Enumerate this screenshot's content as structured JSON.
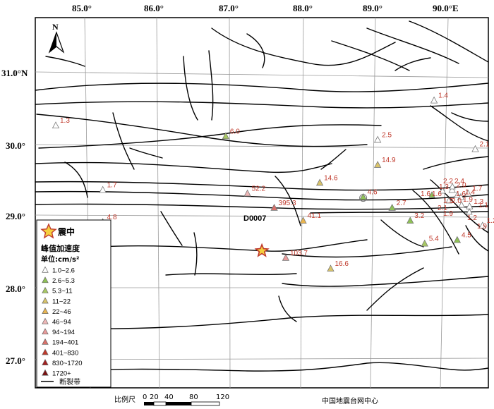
{
  "map": {
    "lon_ticks": [
      "85.0°",
      "86.0°",
      "87.0°",
      "88.0°",
      "89.0°",
      "90.0°E"
    ],
    "lat_ticks": [
      "31.0°N",
      "30.0°",
      "29.0°",
      "28.0°",
      "27.0°"
    ],
    "north_label": "N",
    "station_id": "D0007",
    "credit": "中国地震台网中心",
    "scale": {
      "title": "比例尺",
      "ticks": [
        "0",
        "20",
        "40",
        "80",
        "120"
      ]
    }
  },
  "legend": {
    "epicenter_label": "震中",
    "pga_title": "峰值加速度",
    "unit_label": "单位:cm/s²",
    "fault_label": "断裂带",
    "classes": [
      {
        "range": "1.0~2.6",
        "color": "#ffffff"
      },
      {
        "range": "2.6~5.3",
        "color": "#8fc156"
      },
      {
        "range": "5.3~11",
        "color": "#a8c863"
      },
      {
        "range": "11~22",
        "color": "#d9c46a"
      },
      {
        "range": "22~46",
        "color": "#e8b44f"
      },
      {
        "range": "46~94",
        "color": "#efb7b7"
      },
      {
        "range": "94~194",
        "color": "#e99a9a"
      },
      {
        "range": "194~401",
        "color": "#d9706a"
      },
      {
        "range": "401~830",
        "color": "#c0392b"
      },
      {
        "range": "830~1720",
        "color": "#a32020"
      },
      {
        "range": "1720+",
        "color": "#7a1010"
      }
    ]
  },
  "colors": {
    "label": "#c0392b",
    "epicenter_fill": "#f4d03f",
    "epicenter_stroke": "#c0392b"
  },
  "stations": [
    {
      "value": "1.3",
      "lon": 84.6,
      "lat": 30.25,
      "color": "#ffffff"
    },
    {
      "value": "1.7",
      "lon": 85.25,
      "lat": 29.35,
      "color": "#ffffff"
    },
    {
      "value": "4.8",
      "lon": 85.25,
      "lat": 28.9,
      "color": "#8fc156"
    },
    {
      "value": "6.0",
      "lon": 86.95,
      "lat": 30.1,
      "color": "#a8c863"
    },
    {
      "value": "52.2",
      "lon": 87.25,
      "lat": 29.3,
      "color": "#efb7b7"
    },
    {
      "value": "395.3",
      "lon": 87.62,
      "lat": 29.1,
      "color": "#d9706a"
    },
    {
      "value": "41.1",
      "lon": 88.02,
      "lat": 28.92,
      "color": "#e8b44f"
    },
    {
      "value": "103.7",
      "lon": 87.78,
      "lat": 28.4,
      "color": "#e99a9a"
    },
    {
      "value": "14.6",
      "lon": 88.25,
      "lat": 29.45,
      "color": "#d9c46a"
    },
    {
      "value": "16.6",
      "lon": 88.4,
      "lat": 28.25,
      "color": "#d9c46a"
    },
    {
      "value": "4.6",
      "lon": 88.85,
      "lat": 29.25,
      "color": "#8fc156"
    },
    {
      "value": "2.7",
      "lon": 89.25,
      "lat": 29.1,
      "color": "#8fc156"
    },
    {
      "value": "2.5",
      "lon": 89.05,
      "lat": 30.05,
      "color": "#ffffff"
    },
    {
      "value": "14.9",
      "lon": 89.05,
      "lat": 29.7,
      "color": "#d9c46a"
    },
    {
      "value": "3.2",
      "lon": 89.5,
      "lat": 28.92,
      "color": "#8fc156"
    },
    {
      "value": "5.4",
      "lon": 89.7,
      "lat": 28.6,
      "color": "#a8c863"
    },
    {
      "value": "1.4",
      "lon": 89.83,
      "lat": 30.6,
      "color": "#ffffff"
    },
    {
      "value": "4.5",
      "lon": 90.15,
      "lat": 28.65,
      "color": "#8fc156"
    },
    {
      "value": "2.1",
      "lon": 90.4,
      "lat": 29.92,
      "color": "#ffffff"
    },
    {
      "value": "2.0",
      "lon": 90.08,
      "lat": 29.35,
      "color": "#ffffff"
    },
    {
      "value": "1.7",
      "lon": 90.3,
      "lat": 29.3,
      "color": "#ffffff"
    },
    {
      "value": "1.4",
      "lon": 90.2,
      "lat": 29.25,
      "color": "#ffffff"
    },
    {
      "value": "1.3",
      "lon": 90.32,
      "lat": 29.12,
      "color": "#ffffff"
    },
    {
      "value": "1.2",
      "lon": 90.5,
      "lat": 28.85,
      "color": "#ffffff"
    }
  ],
  "cluster_labels": [
    "2.2",
    "2.4",
    "1.6",
    "1.6",
    "1.3",
    "1.6",
    "1.3",
    "2.1",
    "2.0",
    "1.9",
    "1.1",
    "1.9",
    "1.2",
    "1.9"
  ],
  "epicenter": {
    "lon": 87.45,
    "lat": 28.5
  }
}
